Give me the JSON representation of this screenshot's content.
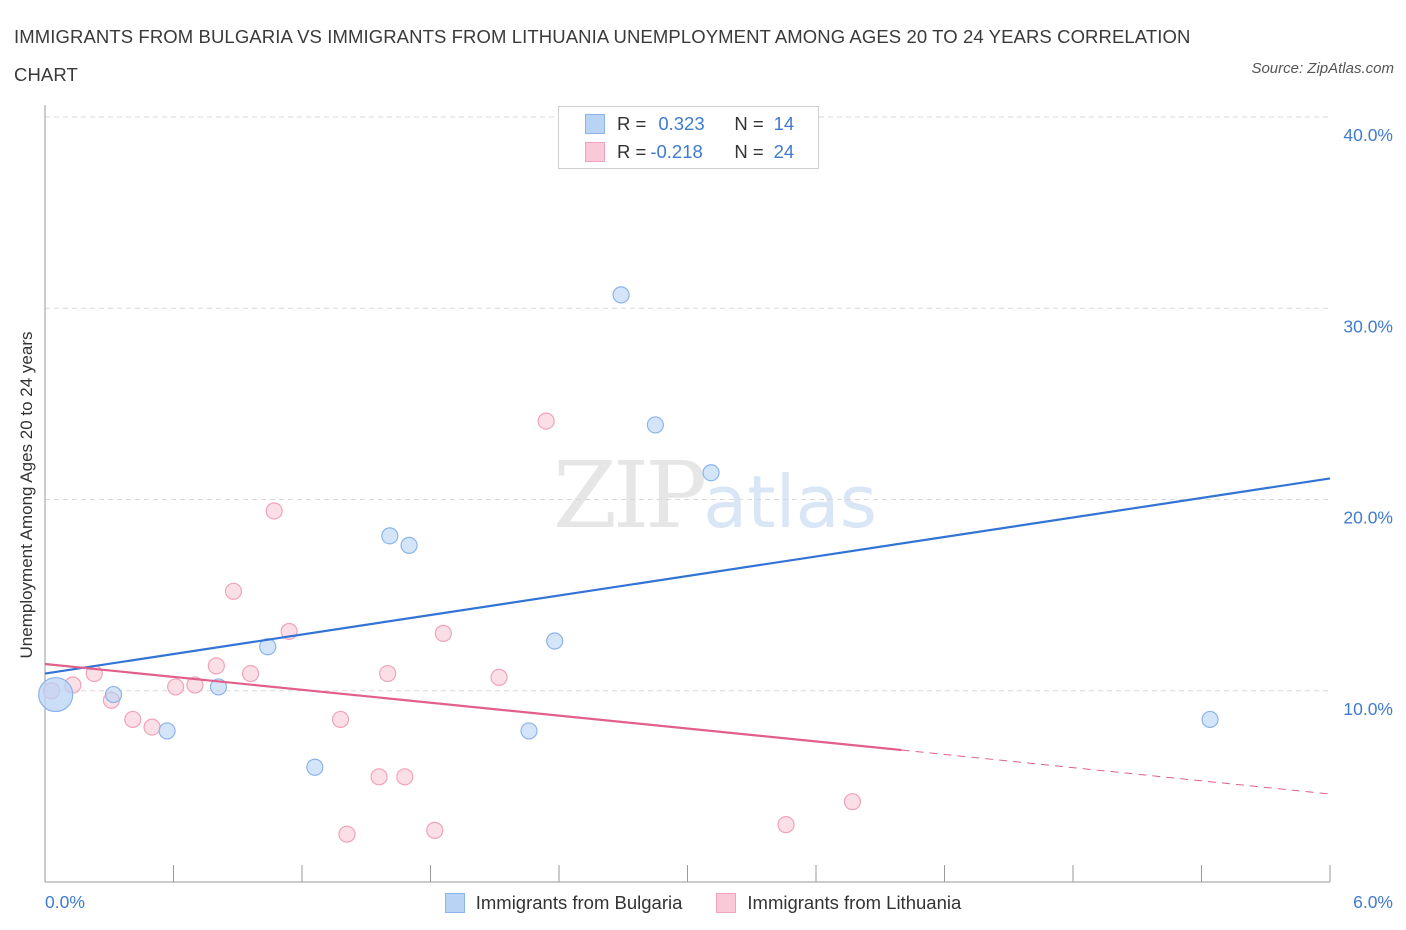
{
  "title": "IMMIGRANTS FROM BULGARIA VS IMMIGRANTS FROM LITHUANIA UNEMPLOYMENT AMONG AGES 20 TO 24 YEARS CORRELATION CHART",
  "source": "Source: ZipAtlas.com",
  "watermark": {
    "zip": "ZIP",
    "atlas": "atlas"
  },
  "legend": {
    "rows": [
      {
        "r_label": "R =",
        "r_value": "0.323",
        "n_label": "N =",
        "n_value": "14"
      },
      {
        "r_label": "R =",
        "r_value": "-0.218",
        "n_label": "N =",
        "n_value": "24"
      }
    ]
  },
  "colors": {
    "bulgaria_fill": "#b9d3f5",
    "bulgaria_stroke": "#8ab4ea",
    "bulgaria_line": "#3274d6",
    "lithuania_fill": "#f9c9d7",
    "lithuania_stroke": "#f0a3ba",
    "lithuania_line": "#e0608a",
    "grid": "#d9d9d9",
    "axis": "#9a9a9a",
    "tick_text": "#3f7bd0"
  },
  "chart_data": {
    "type": "scatter",
    "title": "IMMIGRANTS FROM BULGARIA VS IMMIGRANTS FROM LITHUANIA UNEMPLOYMENT AMONG AGES 20 TO 24 YEARS CORRELATION CHART",
    "xlabel": "",
    "ylabel": "Unemployment Among Ages 20 to 24 years",
    "xlim": [
      0,
      6
    ],
    "ylim": [
      0,
      40
    ],
    "x_tick_labels": [
      "0.0%",
      "6.0%"
    ],
    "y_ticks": [
      10,
      20,
      30,
      40
    ],
    "y_tick_labels": [
      "10.0%",
      "20.0%",
      "30.0%",
      "40.0%"
    ],
    "grid": true,
    "legend_position": "top-center",
    "series": [
      {
        "name": "Immigrants from Bulgaria",
        "points": [
          {
            "x": 0.05,
            "y": 9.8,
            "big": true
          },
          {
            "x": 0.32,
            "y": 9.8
          },
          {
            "x": 0.57,
            "y": 7.9
          },
          {
            "x": 0.81,
            "y": 10.2
          },
          {
            "x": 1.04,
            "y": 12.3
          },
          {
            "x": 1.26,
            "y": 6.0
          },
          {
            "x": 1.61,
            "y": 18.1
          },
          {
            "x": 1.7,
            "y": 17.6
          },
          {
            "x": 2.26,
            "y": 7.9
          },
          {
            "x": 2.38,
            "y": 12.6
          },
          {
            "x": 2.69,
            "y": 30.7
          },
          {
            "x": 2.85,
            "y": 23.9
          },
          {
            "x": 3.11,
            "y": 21.4
          },
          {
            "x": 5.44,
            "y": 8.5
          }
        ],
        "trend": {
          "x": [
            0,
            6
          ],
          "y": [
            10.9,
            21.1
          ]
        }
      },
      {
        "name": "Immigrants from Lithuania",
        "points": [
          {
            "x": 0.03,
            "y": 10.0
          },
          {
            "x": 0.13,
            "y": 10.3
          },
          {
            "x": 0.23,
            "y": 10.9
          },
          {
            "x": 0.31,
            "y": 9.5
          },
          {
            "x": 0.41,
            "y": 8.5
          },
          {
            "x": 0.5,
            "y": 8.1
          },
          {
            "x": 0.61,
            "y": 10.2
          },
          {
            "x": 0.7,
            "y": 10.3
          },
          {
            "x": 0.8,
            "y": 11.3
          },
          {
            "x": 0.88,
            "y": 15.2
          },
          {
            "x": 0.96,
            "y": 10.9
          },
          {
            "x": 1.07,
            "y": 19.4
          },
          {
            "x": 1.14,
            "y": 13.1
          },
          {
            "x": 1.38,
            "y": 8.5
          },
          {
            "x": 1.41,
            "y": 2.5
          },
          {
            "x": 1.56,
            "y": 5.5
          },
          {
            "x": 1.6,
            "y": 10.9
          },
          {
            "x": 1.68,
            "y": 5.5
          },
          {
            "x": 1.82,
            "y": 2.7
          },
          {
            "x": 1.86,
            "y": 13.0
          },
          {
            "x": 2.12,
            "y": 10.7
          },
          {
            "x": 2.34,
            "y": 24.1
          },
          {
            "x": 3.46,
            "y": 3.0
          },
          {
            "x": 3.77,
            "y": 4.2
          }
        ],
        "trend": {
          "x": [
            0,
            4.0
          ],
          "y": [
            11.4,
            6.9
          ]
        },
        "trend_dashed": {
          "x": [
            4.0,
            6
          ],
          "y": [
            6.9,
            4.6
          ]
        }
      }
    ]
  }
}
